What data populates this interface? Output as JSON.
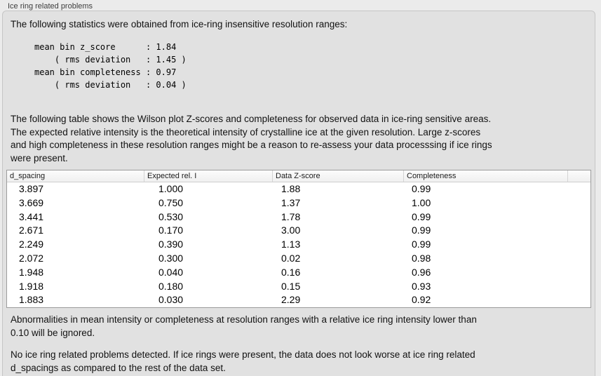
{
  "groupbox": {
    "title": "Ice ring related problems"
  },
  "panel": {
    "intro": "The following statistics were obtained from ice-ring insensitive resolution ranges:",
    "stats_block": "mean bin z_score      : 1.84\n    ( rms deviation   : 1.45 )\nmean bin completeness : 0.97\n    ( rms deviation   : 0.04 )",
    "stats": {
      "mean_bin_z_score": 1.84,
      "z_score_rms_deviation": 1.45,
      "mean_bin_completeness": 0.97,
      "completeness_rms_deviation": 0.04
    },
    "description": "The following table shows the Wilson plot Z-scores and completeness for observed data in ice-ring sensitive areas.\nThe expected relative intensity is the theoretical intensity of crystalline ice at the given resolution. Large z-scores\nand high completeness in these resolution ranges might be a reason to re-assess your data processsing if ice rings\nwere present.",
    "ignored_note": "Abnormalities in mean intensity or completeness at resolution ranges with a relative ice ring intensity lower than\n0.10 will be ignored.",
    "conclusion": "No ice ring related problems detected. If ice rings were present, the data does not look worse at ice ring related\nd_spacings as compared to the rest of the data set."
  },
  "table": {
    "headers": [
      "d_spacing",
      "Expected rel. I",
      "Data Z-score",
      "Completeness"
    ],
    "rows": [
      [
        "3.897",
        "1.000",
        "1.88",
        "0.99"
      ],
      [
        "3.669",
        "0.750",
        "1.37",
        "1.00"
      ],
      [
        "3.441",
        "0.530",
        "1.78",
        "0.99"
      ],
      [
        "2.671",
        "0.170",
        "3.00",
        "0.99"
      ],
      [
        "2.249",
        "0.390",
        "1.13",
        "0.99"
      ],
      [
        "2.072",
        "0.300",
        "0.02",
        "0.98"
      ],
      [
        "1.948",
        "0.040",
        "0.16",
        "0.96"
      ],
      [
        "1.918",
        "0.180",
        "0.15",
        "0.93"
      ],
      [
        "1.883",
        "0.030",
        "2.29",
        "0.92"
      ]
    ]
  },
  "colors": {
    "window_background": "#ebebeb",
    "panel_background": "#e1e1e1",
    "table_background": "#ffffff",
    "text": "#121212"
  }
}
